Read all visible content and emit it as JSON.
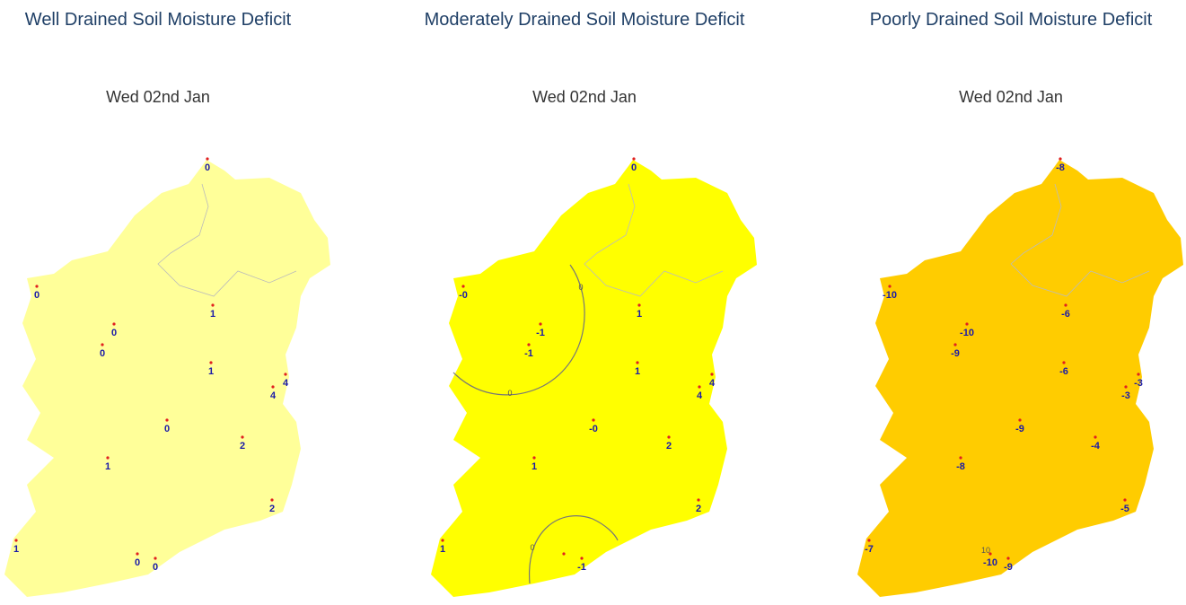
{
  "panels": [
    {
      "title": "Well Drained Soil Moisture Deficit",
      "date": "Wed 02nd Jan",
      "fill": "#ffff99",
      "stations": [
        "0",
        "0",
        "0",
        "0",
        "1",
        "1",
        "4",
        "4",
        "0",
        "2",
        "1",
        "2",
        "1",
        "0",
        "0"
      ],
      "contour_labels": []
    },
    {
      "title": "Moderately Drained Soil Moisture Deficit",
      "date": "Wed 02nd Jan",
      "fill": "#ffff00",
      "stations": [
        "0",
        "-0",
        "-1",
        "-1",
        "1",
        "1",
        "4",
        "4",
        "-0",
        "2",
        "1",
        "2",
        "1",
        null,
        "-1"
      ],
      "contour_labels": [
        "0",
        "0",
        "0"
      ]
    },
    {
      "title": "Poorly Drained Soil Moisture Deficit",
      "date": "Wed 02nd Jan",
      "fill": "#ffcc00",
      "stations": [
        "-8",
        "-10",
        "-10",
        "-9",
        "-6",
        "-6",
        "-3",
        "-3",
        "-9",
        "-4",
        "-8",
        "-5",
        "-7",
        "-10",
        "-9"
      ],
      "contour_labels": [
        "10"
      ]
    }
  ]
}
